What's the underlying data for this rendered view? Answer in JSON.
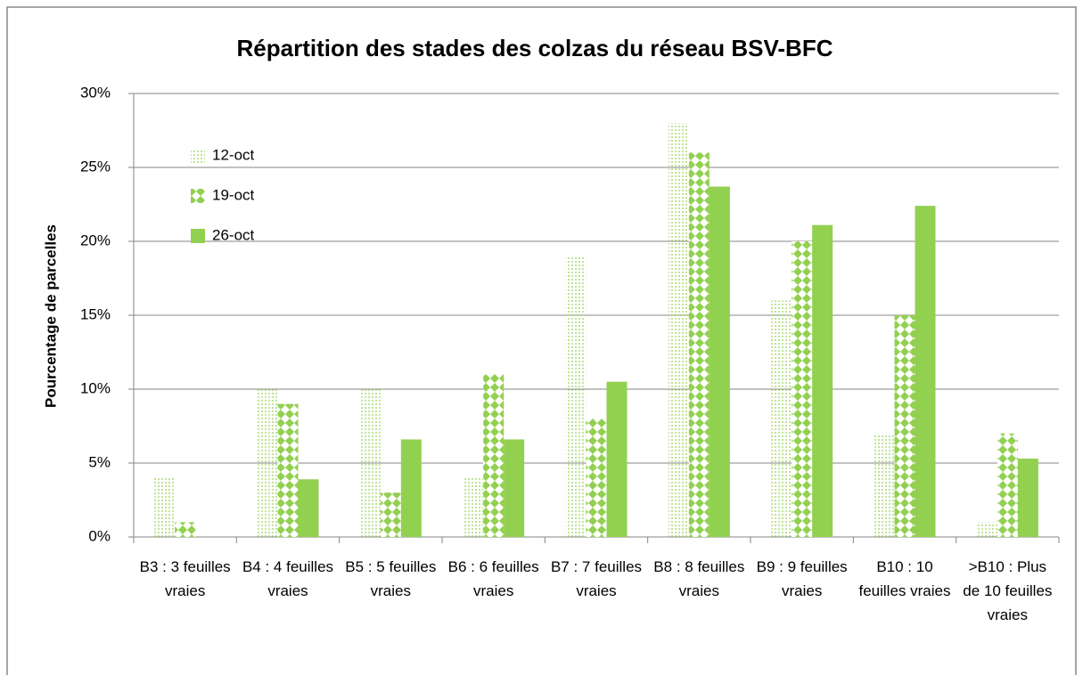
{
  "chart_data": {
    "type": "bar",
    "title": "Répartition des stades des colzas du réseau BSV-BFC",
    "y_label": "Pourcentage de parcelles",
    "categories": [
      "B3 : 3 feuilles vraies",
      "B4 : 4 feuilles vraies",
      "B5 : 5 feuilles vraies",
      "B6 : 6 feuilles vraies",
      "B7 : 7 feuilles vraies",
      "B8 : 8 feuilles vraies",
      "B9 : 9 feuilles vraies",
      "B10 : 10 feuilles vraies",
      ">B10 : Plus de 10 feuilles vraies"
    ],
    "series": [
      {
        "name": "12-oct",
        "color": "#92d050",
        "pattern": "dots",
        "values": [
          4,
          10,
          10,
          4,
          19,
          28,
          16,
          7,
          1
        ]
      },
      {
        "name": "19-oct",
        "color": "#92d050",
        "pattern": "diamonds",
        "values": [
          1,
          9,
          3,
          11,
          8,
          26,
          20,
          15,
          7
        ]
      },
      {
        "name": "26-oct",
        "color": "#92d050",
        "pattern": "solid",
        "values": [
          0,
          3.9,
          6.6,
          6.6,
          10.5,
          23.7,
          21.1,
          22.4,
          5.3
        ]
      }
    ],
    "ylim": [
      0,
      30
    ],
    "yticks": [
      {
        "value": 0,
        "label": "0%"
      },
      {
        "value": 5,
        "label": "5%"
      },
      {
        "value": 10,
        "label": "10%"
      },
      {
        "value": 15,
        "label": "15%"
      },
      {
        "value": 20,
        "label": "20%"
      },
      {
        "value": 25,
        "label": "25%"
      },
      {
        "value": 30,
        "label": "30%"
      }
    ],
    "grid": true,
    "legend": "top-left"
  }
}
